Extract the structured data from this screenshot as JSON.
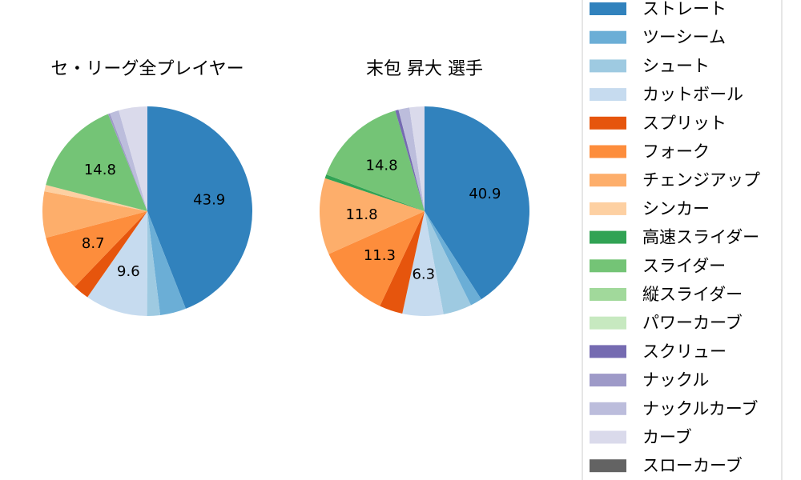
{
  "chart_data": [
    {
      "type": "pie",
      "title": "セ・リーグ全プレイヤー",
      "slices": [
        {
          "name": "ストレート",
          "value": 43.9,
          "label": "43.9"
        },
        {
          "name": "ツーシーム",
          "value": 4.0,
          "label": ""
        },
        {
          "name": "シュート",
          "value": 2.0,
          "label": ""
        },
        {
          "name": "カットボール",
          "value": 9.6,
          "label": "9.6"
        },
        {
          "name": "スプリット",
          "value": 2.5,
          "label": ""
        },
        {
          "name": "フォーク",
          "value": 8.7,
          "label": "8.7"
        },
        {
          "name": "チェンジアップ",
          "value": 7.1,
          "label": ""
        },
        {
          "name": "シンカー",
          "value": 1.0,
          "label": ""
        },
        {
          "name": "高速スライダー",
          "value": 0.0,
          "label": ""
        },
        {
          "name": "スライダー",
          "value": 14.8,
          "label": "14.8"
        },
        {
          "name": "縦スライダー",
          "value": 0.0,
          "label": ""
        },
        {
          "name": "パワーカーブ",
          "value": 0.0,
          "label": ""
        },
        {
          "name": "スクリュー",
          "value": 0.0,
          "label": ""
        },
        {
          "name": "ナックル",
          "value": 0.3,
          "label": ""
        },
        {
          "name": "ナックルカーブ",
          "value": 1.4,
          "label": ""
        },
        {
          "name": "カーブ",
          "value": 4.4,
          "label": ""
        },
        {
          "name": "スローカーブ",
          "value": 0.0,
          "label": ""
        }
      ]
    },
    {
      "type": "pie",
      "title": "末包 昇大  選手",
      "slices": [
        {
          "name": "ストレート",
          "value": 40.9,
          "label": "40.9"
        },
        {
          "name": "ツーシーム",
          "value": 1.8,
          "label": ""
        },
        {
          "name": "シュート",
          "value": 4.4,
          "label": ""
        },
        {
          "name": "カットボール",
          "value": 6.3,
          "label": "6.3"
        },
        {
          "name": "スプリット",
          "value": 3.6,
          "label": ""
        },
        {
          "name": "フォーク",
          "value": 11.3,
          "label": "11.3"
        },
        {
          "name": "チェンジアップ",
          "value": 11.8,
          "label": "11.8"
        },
        {
          "name": "シンカー",
          "value": 0.0,
          "label": ""
        },
        {
          "name": "高速スライダー",
          "value": 0.6,
          "label": ""
        },
        {
          "name": "スライダー",
          "value": 14.8,
          "label": "14.8"
        },
        {
          "name": "縦スライダー",
          "value": 0.0,
          "label": ""
        },
        {
          "name": "パワーカーブ",
          "value": 0.0,
          "label": ""
        },
        {
          "name": "スクリュー",
          "value": 0.5,
          "label": ""
        },
        {
          "name": "ナックル",
          "value": 0.0,
          "label": ""
        },
        {
          "name": "ナックルカーブ",
          "value": 1.7,
          "label": ""
        },
        {
          "name": "カーブ",
          "value": 2.3,
          "label": ""
        },
        {
          "name": "スローカーブ",
          "value": 0.0,
          "label": ""
        }
      ]
    }
  ],
  "legend": {
    "placement": "right",
    "items": [
      {
        "name": "ストレート",
        "color": "#3182bd"
      },
      {
        "name": "ツーシーム",
        "color": "#6baed6"
      },
      {
        "name": "シュート",
        "color": "#9ecae1"
      },
      {
        "name": "カットボール",
        "color": "#c6dbef"
      },
      {
        "name": "スプリット",
        "color": "#e6550d"
      },
      {
        "name": "フォーク",
        "color": "#fd8d3c"
      },
      {
        "name": "チェンジアップ",
        "color": "#fdae6b"
      },
      {
        "name": "シンカー",
        "color": "#fdd0a2"
      },
      {
        "name": "高速スライダー",
        "color": "#31a354"
      },
      {
        "name": "スライダー",
        "color": "#74c476"
      },
      {
        "name": "縦スライダー",
        "color": "#a1d99b"
      },
      {
        "name": "パワーカーブ",
        "color": "#c7e9c0"
      },
      {
        "name": "スクリュー",
        "color": "#756bb1"
      },
      {
        "name": "ナックル",
        "color": "#9e9ac8"
      },
      {
        "name": "ナックルカーブ",
        "color": "#bcbddc"
      },
      {
        "name": "カーブ",
        "color": "#dadaeb"
      },
      {
        "name": "スローカーブ",
        "color": "#636363"
      }
    ]
  }
}
